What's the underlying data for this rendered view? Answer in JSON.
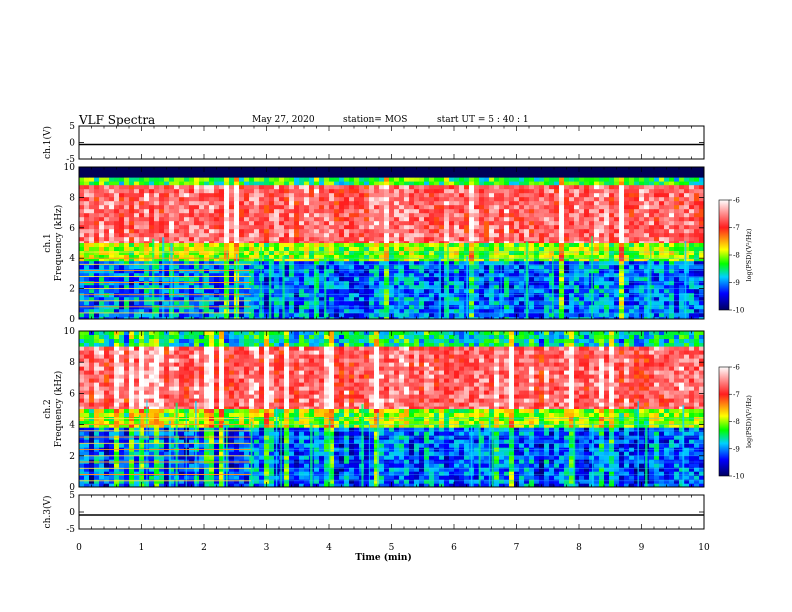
{
  "header": {
    "title": "VLF Spectra",
    "date": "May 27, 2020",
    "station": "station= MOS",
    "start_ut": "start  UT  =   5  : 40 : 1"
  },
  "chart_data": [
    {
      "type": "line",
      "name_label": "ch.1(V)",
      "ylabel": "ch.1(V)",
      "xlim": [
        0,
        10
      ],
      "ylim": [
        -5,
        5
      ],
      "yticks": [
        "5",
        "0",
        "-5"
      ],
      "x": [
        0,
        10
      ],
      "values": [
        0,
        0
      ]
    },
    {
      "type": "heatmap",
      "ylabel": "ch.1\nFrequency (kHz)",
      "xlim": [
        0,
        10
      ],
      "ylim": [
        0,
        10
      ],
      "yticks": [
        "0",
        "2",
        "4",
        "6",
        "8",
        "10"
      ],
      "colorbar": {
        "label": "log(PSD)(V²/Hz)",
        "range": [
          -10,
          -6
        ],
        "ticks": [
          "-6",
          "-7",
          "-8",
          "-9",
          "-10"
        ],
        "colors": [
          "#ffffff",
          "#ff2020",
          "#ffff00",
          "#00ff00",
          "#00c8ff",
          "#0000ff",
          "#000060"
        ]
      },
      "bands": [
        {
          "from": 9.3,
          "to": 10.0,
          "log_psd": -10.5
        },
        {
          "from": 8.8,
          "to": 9.3,
          "log_psd": -8.5
        },
        {
          "from": 5.0,
          "to": 8.8,
          "log_psd": -6.6
        },
        {
          "from": 3.8,
          "to": 5.0,
          "log_psd": -8.2
        },
        {
          "from": 0.0,
          "to": 3.8,
          "log_psd": -9.2
        }
      ],
      "interference_end_min": 2.75
    },
    {
      "type": "heatmap",
      "ylabel": "ch.2\nFrequency (kHz)",
      "xlim": [
        0,
        10
      ],
      "ylim": [
        0,
        10
      ],
      "yticks": [
        "0",
        "2",
        "4",
        "6",
        "8",
        "10"
      ],
      "colorbar": {
        "label": "log(PSD)(V²/Hz)",
        "range": [
          -10,
          -6
        ],
        "ticks": [
          "-6",
          "-7",
          "-8",
          "-9",
          "-10"
        ],
        "colors": [
          "#ffffff",
          "#ff2020",
          "#ffff00",
          "#00ff00",
          "#00c8ff",
          "#0000ff",
          "#000060"
        ]
      },
      "bands": [
        {
          "from": 9.0,
          "to": 10.0,
          "log_psd": -8.8
        },
        {
          "from": 5.0,
          "to": 9.0,
          "log_psd": -6.6
        },
        {
          "from": 3.8,
          "to": 5.0,
          "log_psd": -8.2
        },
        {
          "from": 0.0,
          "to": 3.8,
          "log_psd": -9.3
        }
      ],
      "interference_end_min": 2.75
    },
    {
      "type": "line",
      "name_label": "ch.3(V)",
      "ylabel": "ch.3(V)",
      "xlim": [
        0,
        10
      ],
      "ylim": [
        -5,
        5
      ],
      "yticks": [
        "5",
        "0",
        "-5"
      ],
      "xticks": [
        "0",
        "1",
        "2",
        "3",
        "4",
        "5",
        "6",
        "7",
        "8",
        "9",
        "10"
      ],
      "xlabel": "Time (min)",
      "x": [
        0,
        10
      ],
      "values": [
        0,
        0
      ]
    }
  ]
}
